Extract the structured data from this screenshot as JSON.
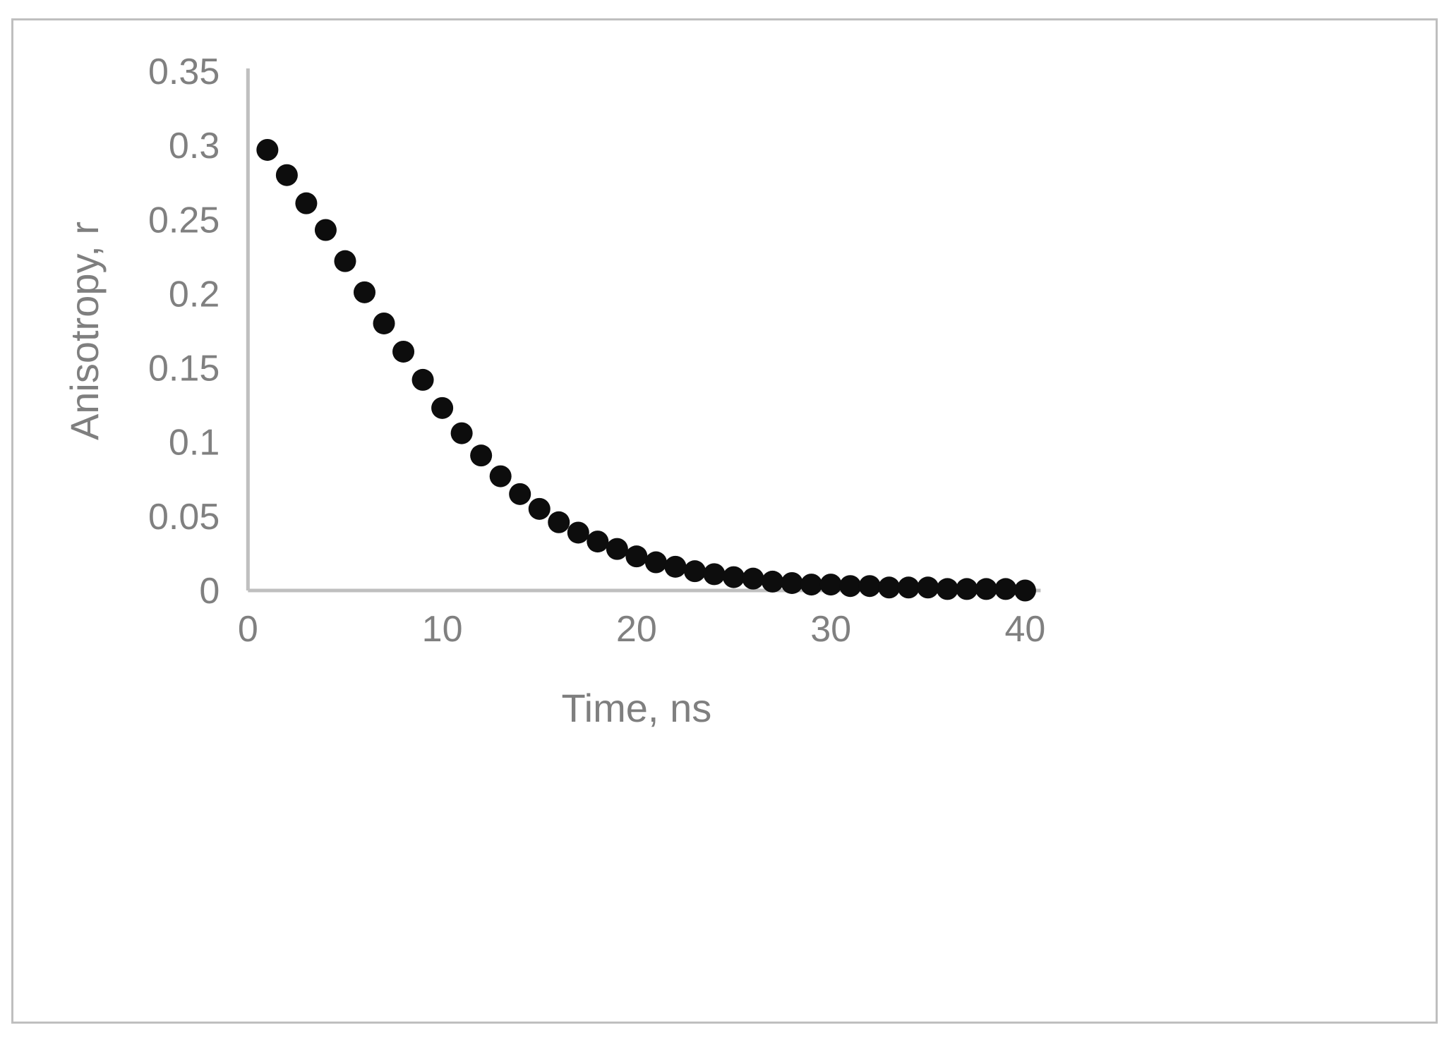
{
  "chart_data": {
    "type": "scatter",
    "title": "",
    "xlabel": "Time, ns",
    "ylabel": "Anisotropy, r",
    "xlim": [
      0,
      40
    ],
    "ylim": [
      0,
      0.35
    ],
    "x_ticks": [
      0,
      10,
      20,
      30,
      40
    ],
    "y_ticks": [
      0,
      0.05,
      0.1,
      0.15,
      0.2,
      0.25,
      0.3,
      0.35
    ],
    "grid": false,
    "legend": "none",
    "marker_color": "#0d0d0d",
    "axis_line_color": "#bfbfbf",
    "tick_text_color": "#808080",
    "series": [
      {
        "name": "anisotropy-decay",
        "x": [
          1,
          2,
          3,
          4,
          5,
          6,
          7,
          8,
          9,
          10,
          11,
          12,
          13,
          14,
          15,
          16,
          17,
          18,
          19,
          20,
          21,
          22,
          23,
          24,
          25,
          26,
          27,
          28,
          29,
          30,
          31,
          32,
          33,
          34,
          35,
          36,
          37,
          38,
          39,
          40
        ],
        "y": [
          0.297,
          0.28,
          0.261,
          0.243,
          0.222,
          0.201,
          0.18,
          0.161,
          0.142,
          0.123,
          0.106,
          0.091,
          0.077,
          0.065,
          0.055,
          0.046,
          0.039,
          0.033,
          0.028,
          0.023,
          0.019,
          0.016,
          0.013,
          0.011,
          0.009,
          0.008,
          0.006,
          0.005,
          0.004,
          0.004,
          0.003,
          0.003,
          0.002,
          0.002,
          0.002,
          0.001,
          0.001,
          0.001,
          0.001,
          0.0
        ]
      }
    ]
  }
}
